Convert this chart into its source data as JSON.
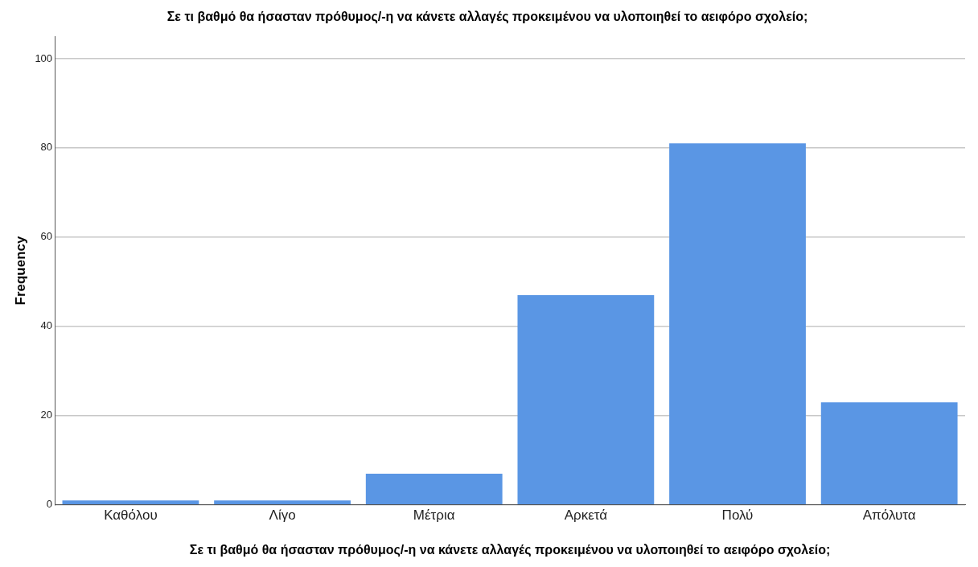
{
  "chart_data": {
    "type": "bar",
    "title": "Σε τι βαθμό θα ήσασταν πρόθυμος/-η να κάνετε αλλαγές προκειμένου να υλοποιηθεί το αειφόρο σχολείο;",
    "xlabel": "Σε τι βαθμό θα ήσασταν πρόθυμος/-η να κάνετε αλλαγές προκειμένου να υλοποιηθεί το αειφόρο σχολείο;",
    "ylabel": "Frequency",
    "categories": [
      "Καθόλου",
      "Λίγο",
      "Μέτρια",
      "Αρκετά",
      "Πολύ",
      "Απόλυτα"
    ],
    "values": [
      1,
      1,
      7,
      47,
      81,
      23
    ],
    "color": "#5a96e4",
    "ylim": [
      0,
      105
    ],
    "yticks": [
      0,
      20,
      40,
      60,
      80,
      100
    ],
    "grid": "y",
    "legend": false
  }
}
